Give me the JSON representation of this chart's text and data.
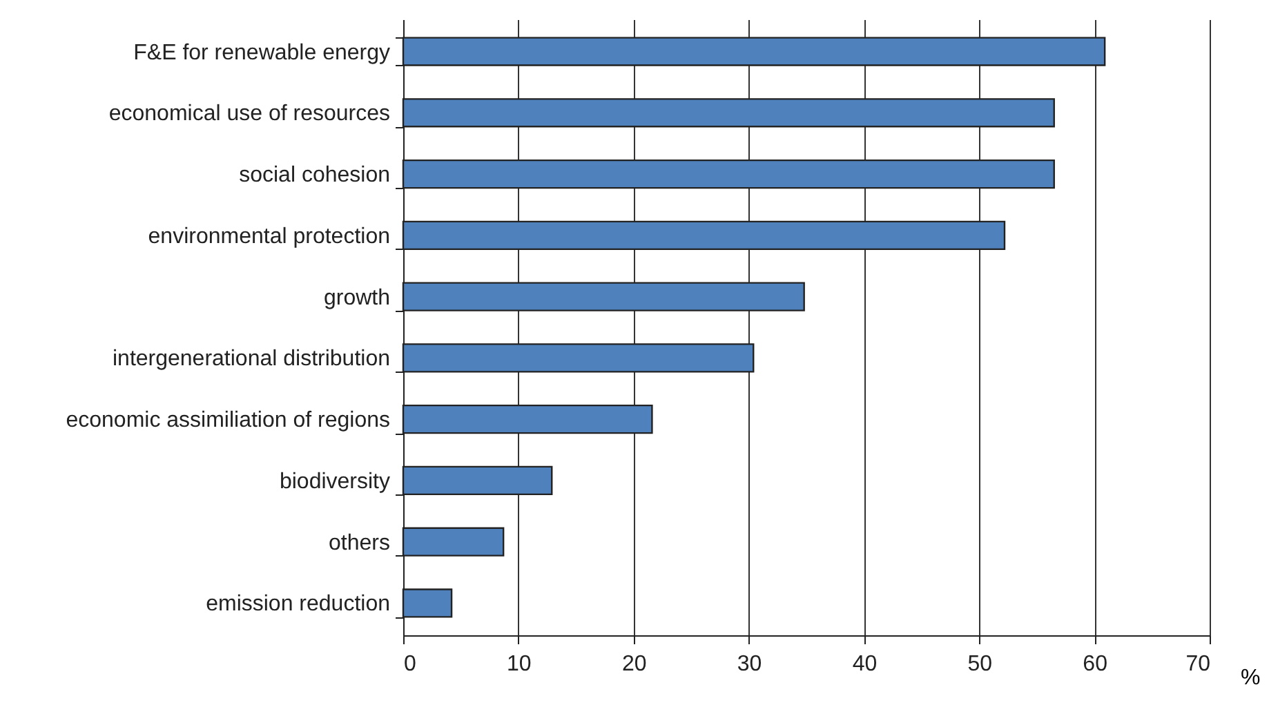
{
  "chart_data": {
    "type": "bar",
    "orientation": "horizontal",
    "xlabel": "%",
    "categories": [
      "F&E for renewable energy",
      "economical use of resources",
      "social cohesion",
      "environmental protection",
      "growth",
      "intergenerational distribution",
      "economic assimiliation of regions",
      "biodiversity",
      "others",
      "emission reduction"
    ],
    "values": [
      60.9,
      56.5,
      56.5,
      52.2,
      34.8,
      30.4,
      21.6,
      12.9,
      8.7,
      4.2
    ],
    "color": "#4f81bd",
    "xlim": [
      0,
      70
    ],
    "xticks": [
      0,
      10,
      20,
      30,
      40,
      50,
      60,
      70
    ],
    "grid": "x"
  }
}
